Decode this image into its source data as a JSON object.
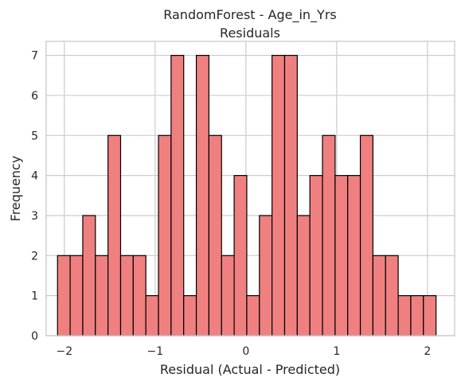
{
  "chart_data": {
    "type": "bar",
    "title": "RandomForest - Age_in_Yrs",
    "subtitle": "Residuals",
    "xlabel": "Residual (Actual - Predicted)",
    "ylabel": "Frequency",
    "grid": true,
    "xlim": [
      -2.2,
      2.3
    ],
    "ylim": [
      0,
      7.35
    ],
    "xticks": [
      -2,
      -1,
      0,
      1,
      2
    ],
    "xtick_labels": [
      "−2",
      "−1",
      "0",
      "1",
      "2"
    ],
    "yticks": [
      0,
      1,
      2,
      3,
      4,
      5,
      6,
      7
    ],
    "ytick_labels": [
      "0",
      "1",
      "2",
      "3",
      "4",
      "5",
      "6",
      "7"
    ],
    "bar_color": "#f08080",
    "edge_color": "#000000",
    "bin_start": -2.075,
    "bin_width": 0.139,
    "values": [
      2,
      2,
      3,
      2,
      5,
      2,
      2,
      1,
      5,
      7,
      1,
      7,
      5,
      2,
      4,
      1,
      3,
      7,
      7,
      3,
      4,
      5,
      4,
      4,
      5,
      2,
      2,
      1,
      1,
      1
    ]
  }
}
